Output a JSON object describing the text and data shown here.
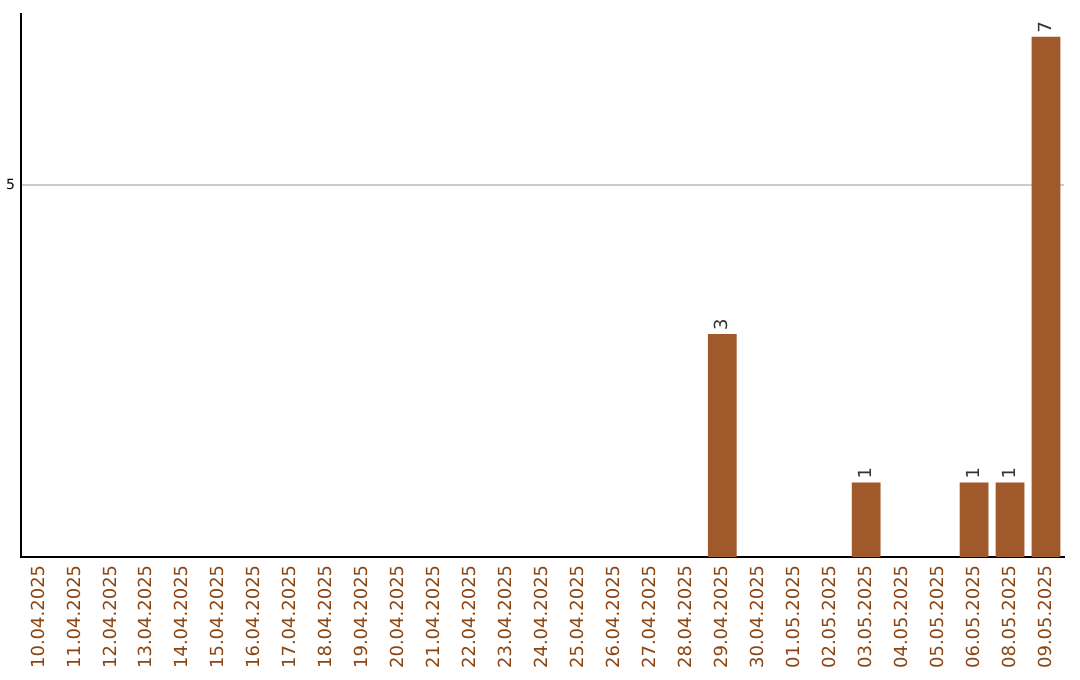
{
  "chart_data": {
    "type": "bar",
    "categories": [
      "10.04.2025",
      "11.04.2025",
      "12.04.2025",
      "13.04.2025",
      "14.04.2025",
      "15.04.2025",
      "16.04.2025",
      "17.04.2025",
      "18.04.2025",
      "19.04.2025",
      "20.04.2025",
      "21.04.2025",
      "22.04.2025",
      "23.04.2025",
      "24.04.2025",
      "25.04.2025",
      "26.04.2025",
      "27.04.2025",
      "28.04.2025",
      "29.04.2025",
      "30.04.2025",
      "01.05.2025",
      "02.05.2025",
      "03.05.2025",
      "04.05.2025",
      "05.05.2025",
      "06.05.2025",
      "08.05.2025",
      "09.05.2025"
    ],
    "values": [
      null,
      null,
      null,
      null,
      null,
      null,
      null,
      null,
      null,
      null,
      null,
      null,
      null,
      null,
      null,
      null,
      null,
      null,
      null,
      3,
      null,
      null,
      null,
      1,
      null,
      null,
      1,
      1,
      7
    ],
    "value_labels": [
      null,
      null,
      null,
      null,
      null,
      null,
      null,
      null,
      null,
      null,
      null,
      null,
      null,
      null,
      null,
      null,
      null,
      null,
      null,
      "3",
      null,
      null,
      null,
      "1",
      null,
      null,
      "1",
      "1",
      "7"
    ],
    "color": "#a0592a",
    "ylim": [
      0,
      7.3
    ],
    "yticks": [
      5
    ],
    "grid": "y",
    "legend": false
  }
}
